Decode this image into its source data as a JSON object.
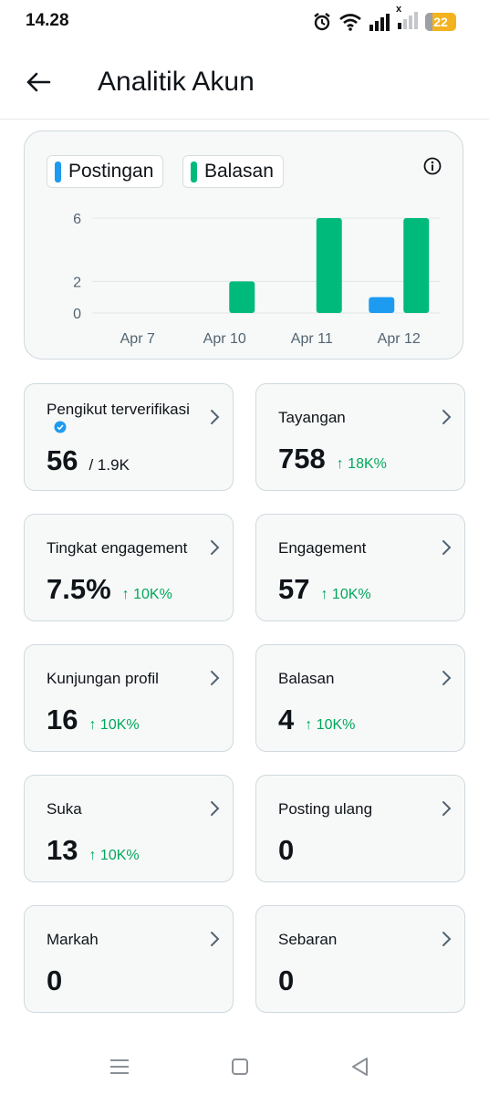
{
  "status_bar": {
    "time": "14.28",
    "battery": "22",
    "sim2_mark": "x"
  },
  "header": {
    "title": "Analitik Akun"
  },
  "chart_data": {
    "type": "bar",
    "categories": [
      "Apr 7",
      "Apr 10",
      "Apr 11",
      "Apr 12"
    ],
    "series": [
      {
        "name": "Postingan",
        "color": "#1d9bf0",
        "values": [
          0,
          0,
          0,
          1
        ]
      },
      {
        "name": "Balasan",
        "color": "#00ba7c",
        "values": [
          0,
          2,
          6,
          6
        ]
      }
    ],
    "yticks": [
      0,
      2,
      6
    ],
    "ylim": [
      0,
      6
    ],
    "grid": true,
    "legend_position": "top-left"
  },
  "cards": [
    {
      "label": "Pengikut terverifikasi",
      "value": "56",
      "sub": "/ 1.9K",
      "change": "",
      "verified": true
    },
    {
      "label": "Tayangan",
      "value": "758",
      "sub": "",
      "change": "↑ 18K%"
    },
    {
      "label": "Tingkat engagement",
      "value": "7.5%",
      "sub": "",
      "change": "↑ 10K%"
    },
    {
      "label": "Engagement",
      "value": "57",
      "sub": "",
      "change": "↑ 10K%"
    },
    {
      "label": "Kunjungan profil",
      "value": "16",
      "sub": "",
      "change": "↑ 10K%"
    },
    {
      "label": "Balasan",
      "value": "4",
      "sub": "",
      "change": "↑ 10K%"
    },
    {
      "label": "Suka",
      "value": "13",
      "sub": "",
      "change": "↑ 10K%"
    },
    {
      "label": "Posting ulang",
      "value": "0",
      "sub": "",
      "change": ""
    },
    {
      "label": "Markah",
      "value": "0",
      "sub": "",
      "change": ""
    },
    {
      "label": "Sebaran",
      "value": "0",
      "sub": "",
      "change": ""
    }
  ],
  "icons": {
    "back": "arrow-left-icon",
    "info": "info-icon",
    "chevron": "chevron-right-icon",
    "verified": "verified-badge-icon"
  }
}
